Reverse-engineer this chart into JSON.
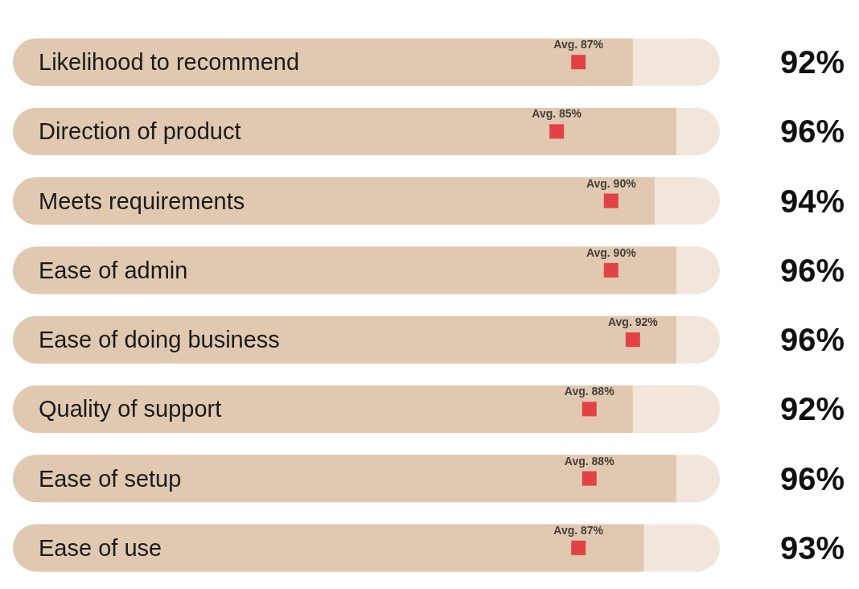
{
  "chart_data": {
    "type": "bar",
    "orientation": "horizontal",
    "categories": [
      "Likelihood to recommend",
      "Direction of product",
      "Meets requirements",
      "Ease of admin",
      "Ease of doing business",
      "Quality of support",
      "Ease of setup",
      "Ease of use"
    ],
    "xlim": [
      35,
      100
    ],
    "tick_labels": "y",
    "marker": "square",
    "series": [
      {
        "color": "#e0c9b0",
        "values": [
          92,
          96,
          94,
          96,
          96,
          92,
          96,
          93
        ],
        "value_labels": [
          "92%",
          "96%",
          "94%",
          "96%",
          "96%",
          "92%",
          "96%",
          "93%"
        ]
      },
      {
        "type": "scatter",
        "color": "#e4202a",
        "values": [
          87,
          85,
          90,
          90,
          92,
          88,
          88,
          87
        ],
        "value_labels": [
          "Avg. 87%",
          "Avg. 85%",
          "Avg. 90%",
          "Avg. 90%",
          "Avg. 92%",
          "Avg. 88%",
          "Avg. 88%",
          "Avg. 87%"
        ]
      }
    ]
  }
}
